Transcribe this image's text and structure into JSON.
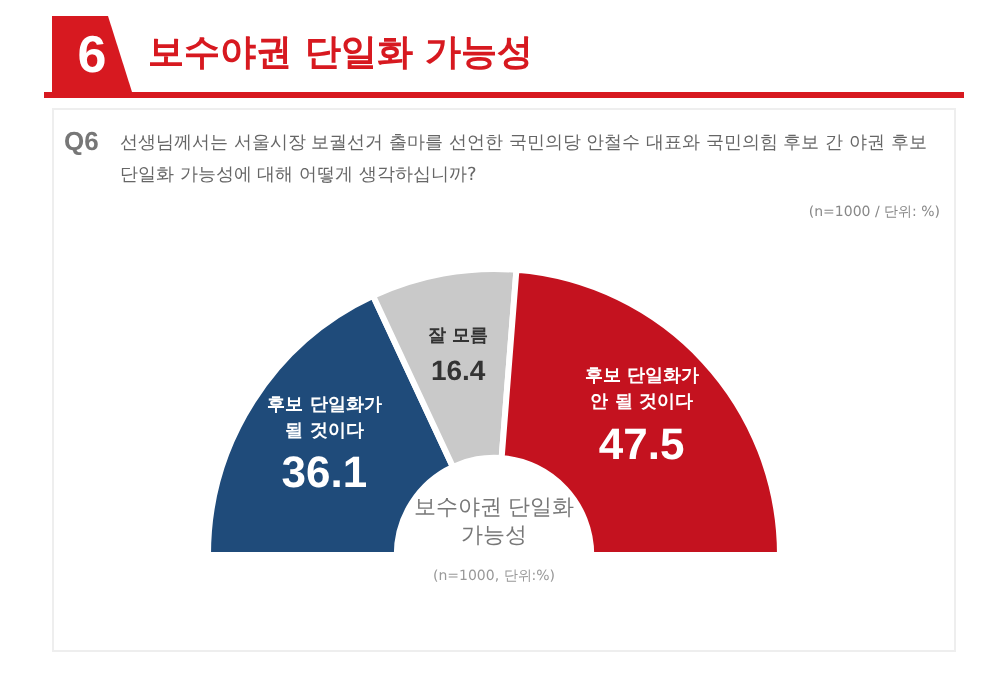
{
  "chart_data": {
    "type": "donut",
    "title": "보수야권 단일화 가능성",
    "subtitle": "선생님께서는 서울시장 보궐선거 출마를 선언한 국민의당 안철수 대표와 국민의힘 후보 간 야권 후보 단일화 가능성에 대해 어떻게 생각하십니까?",
    "categories": [
      "후보 단일화가 될 것이다",
      "잘 모름",
      "후보 단일화가 안 될 것이다"
    ],
    "values": [
      36.1,
      16.4,
      47.5
    ],
    "colors": [
      "#1f4b7a",
      "#c9c9c9",
      "#c4121f"
    ],
    "data_labels": true,
    "annotations": [
      "6",
      "Q6",
      "(n=1000 / 단위: %)",
      "보수야권 단일화 가능성",
      "(n=1000, 단위:%)"
    ]
  }
}
